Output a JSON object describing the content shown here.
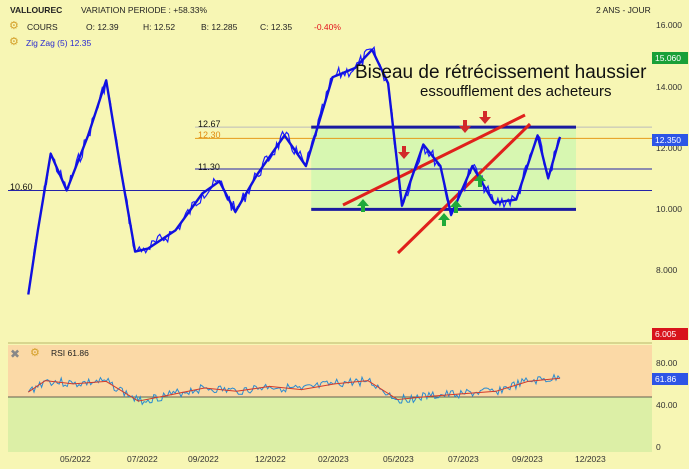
{
  "header": {
    "symbol": "VALLOUREC",
    "variation": "VARIATION PERIODE : +58.33%",
    "period": "2 ANS - JOUR",
    "series_name": "COURS",
    "open": "O: 12.39",
    "high": "H: 12.52",
    "low": "B: 12.285",
    "close": "C: 12.35",
    "change": "-0.40%",
    "indicator": "Zig Zag (5) 12.35"
  },
  "annotations": {
    "title": "Biseau de rétrécissement haussier",
    "subtitle": "essoufflement des acheteurs"
  },
  "levels": {
    "l1267": "12.67",
    "l1230": "12.30",
    "l1130": "11.30",
    "l1060": "10.60"
  },
  "price_tags": {
    "last_high": "15.060",
    "last_close": "12.350",
    "low_tag": "6.005"
  },
  "rsi": {
    "label": "RSI 61.86",
    "value_tag": "61.86"
  },
  "colors": {
    "background": "#f7f6b4",
    "rsi_upper": "#fbd9a6",
    "rsi_lower": "#dcefa6",
    "price_line": "#1a1aff",
    "channel": "#1a1aa0",
    "wedge": "#e0201c",
    "zone_fill": "#d3f7b0",
    "arrow_up": "#1faa3a",
    "arrow_down": "#d22a2a"
  },
  "chart_data": [
    {
      "type": "line",
      "title": "",
      "y_axis": {
        "ticks": [
          8.0,
          10.0,
          12.0,
          14.0,
          16.0
        ],
        "labels": [
          "8.000",
          "10.000",
          "12.000",
          "14.000",
          "16.000"
        ],
        "ylim": [
          6.0,
          16.0
        ],
        "position": "right"
      },
      "x_axis": {
        "labels": [
          "05/2022",
          "07/2022",
          "09/2022",
          "12/2022",
          "02/2023",
          "05/2023",
          "07/2023",
          "09/2023",
          "12/2023"
        ]
      },
      "series": [
        {
          "name": "COURS",
          "points": [
            [
              "2022-03-20",
              7.2
            ],
            [
              "2022-03-29",
              9.3
            ],
            [
              "2022-04-10",
              11.8
            ],
            [
              "2022-04-25",
              10.6
            ],
            [
              "2022-05-15",
              12.4
            ],
            [
              "2022-06-01",
              14.2
            ],
            [
              "2022-06-15",
              11.2
            ],
            [
              "2022-06-28",
              8.6
            ],
            [
              "2022-07-10",
              8.7
            ],
            [
              "2022-08-05",
              9.3
            ],
            [
              "2022-08-30",
              10.5
            ],
            [
              "2022-09-15",
              10.9
            ],
            [
              "2022-09-30",
              9.9
            ],
            [
              "2022-10-20",
              11.1
            ],
            [
              "2022-11-15",
              12.4
            ],
            [
              "2022-12-05",
              11.4
            ],
            [
              "2022-12-30",
              14.3
            ],
            [
              "2023-01-20",
              14.6
            ],
            [
              "2023-02-05",
              15.2
            ],
            [
              "2023-02-20",
              14.1
            ],
            [
              "2023-03-05",
              10.1
            ],
            [
              "2023-03-25",
              12.1
            ],
            [
              "2023-04-10",
              11.4
            ],
            [
              "2023-04-20",
              9.8
            ],
            [
              "2023-05-10",
              11.4
            ],
            [
              "2023-05-30",
              10.2
            ],
            [
              "2023-06-20",
              10.3
            ],
            [
              "2023-07-10",
              12.4
            ],
            [
              "2023-07-20",
              11.0
            ],
            [
              "2023-07-31",
              12.35
            ]
          ]
        }
      ],
      "levels": [
        12.67,
        12.3,
        11.3,
        10.6
      ],
      "last_close": 12.35,
      "year_high_tag": 15.06
    },
    {
      "type": "line",
      "title": "RSI 61.86",
      "y_axis": {
        "ticks": [
          0,
          40,
          60,
          80
        ],
        "labels": [
          "0",
          "40.00",
          "60.00",
          "80.00"
        ]
      },
      "series": [
        {
          "name": "RSI",
          "points": [
            [
              "2022-03-20",
              45
            ],
            [
              "2022-04-05",
              59
            ],
            [
              "2022-05-01",
              55
            ],
            [
              "2022-06-01",
              58
            ],
            [
              "2022-07-01",
              34
            ],
            [
              "2022-08-01",
              42
            ],
            [
              "2022-09-01",
              50
            ],
            [
              "2022-10-01",
              46
            ],
            [
              "2022-11-01",
              52
            ],
            [
              "2022-12-01",
              48
            ],
            [
              "2023-01-01",
              55
            ],
            [
              "2023-02-01",
              59
            ],
            [
              "2023-03-01",
              36
            ],
            [
              "2023-04-01",
              40
            ],
            [
              "2023-05-01",
              43
            ],
            [
              "2023-06-01",
              46
            ],
            [
              "2023-07-01",
              58
            ],
            [
              "2023-07-31",
              61.86
            ]
          ]
        }
      ],
      "last_value": 61.86
    }
  ]
}
